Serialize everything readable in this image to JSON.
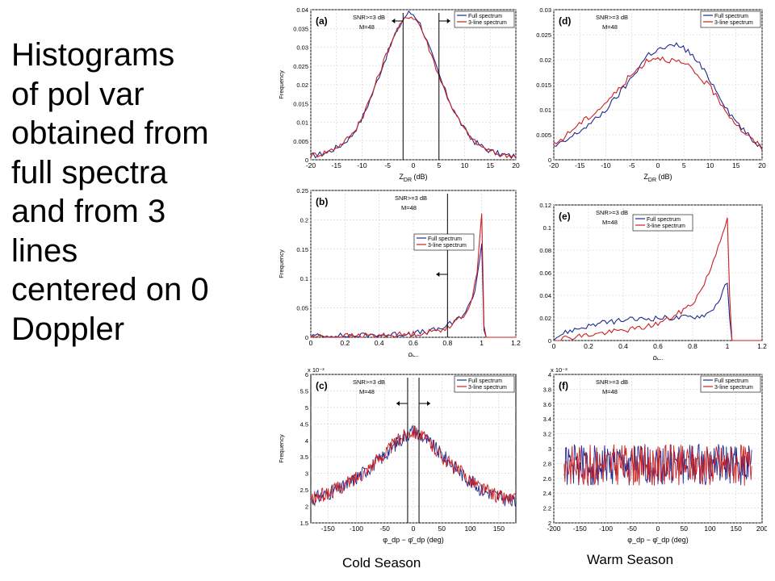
{
  "headline": "Histograms\nof pol var\nobtained from\nfull spectra\nand from 3\nlines\ncentered on 0\nDoppler",
  "seasons": {
    "cold": "Cold Season",
    "warm": "Warm Season"
  },
  "colors": {
    "full": "#1f2a8f",
    "three": "#cc1f1f",
    "grid": "#d0d0d0",
    "axis": "#000000",
    "frame_bg": "#e8e8e8"
  },
  "chart_data": [
    {
      "id": "a",
      "type": "line",
      "label": "(a)",
      "snr": "SNR>=3 dB",
      "m": "M=48",
      "xlabel": "Z_DR (dB)",
      "xlabel_main": "Z",
      "xlabel_sub": "DR",
      "xlabel_unit": " (dB)",
      "ylabel": "Frequency",
      "xlim": [
        -20,
        20
      ],
      "ylim": [
        0,
        0.04
      ],
      "xticks": [
        "-20",
        "-15",
        "-10",
        "-5",
        "0",
        "5",
        "10",
        "15",
        "20"
      ],
      "yticks": [
        "0",
        "0.005",
        "0.01",
        "0.015",
        "0.02",
        "0.025",
        "0.03",
        "0.035",
        "0.04"
      ],
      "x": [
        -20,
        -18,
        -16,
        -14,
        -12,
        -10,
        -8,
        -6,
        -4,
        -2,
        -1,
        0,
        1,
        2,
        4,
        6,
        8,
        10,
        12,
        14,
        16,
        18,
        20
      ],
      "series": [
        {
          "name": "Full spectrum",
          "values": [
            0.001,
            0.0015,
            0.0025,
            0.004,
            0.0065,
            0.011,
            0.0175,
            0.025,
            0.032,
            0.0375,
            0.0392,
            0.0388,
            0.0372,
            0.034,
            0.0265,
            0.019,
            0.0128,
            0.008,
            0.0048,
            0.003,
            0.0018,
            0.0012,
            0.001
          ]
        },
        {
          "name": "3-line spectrum",
          "values": [
            0.0012,
            0.0016,
            0.0026,
            0.0042,
            0.0067,
            0.0112,
            0.0178,
            0.0255,
            0.0325,
            0.037,
            0.0384,
            0.038,
            0.0366,
            0.0336,
            0.0262,
            0.0188,
            0.0127,
            0.0079,
            0.0047,
            0.0029,
            0.0017,
            0.0011,
            0.0012
          ]
        }
      ],
      "markers": [
        {
          "x": -2,
          "arrow": "left"
        },
        {
          "x": 5,
          "arrow": "right"
        }
      ]
    },
    {
      "id": "b",
      "type": "line",
      "label": "(b)",
      "snr": "SNR>=3 dB",
      "m": "M=48",
      "xlabel": "ρ_hv",
      "xlabel_main": "ρ",
      "xlabel_sub": "hv",
      "xlabel_unit": "",
      "ylabel": "Frequency",
      "xlim": [
        0,
        1.2
      ],
      "ylim": [
        0,
        0.25
      ],
      "xticks": [
        "0",
        "0.2",
        "0.4",
        "0.6",
        "0.8",
        "1",
        "1.2"
      ],
      "yticks": [
        "0",
        "0.05",
        "0.1",
        "0.15",
        "0.2",
        "0.25"
      ],
      "x": [
        0,
        0.1,
        0.2,
        0.3,
        0.4,
        0.5,
        0.6,
        0.7,
        0.75,
        0.8,
        0.85,
        0.9,
        0.93,
        0.95,
        0.97,
        0.98,
        0.99,
        1.0,
        1.01,
        1.02,
        1.1,
        1.2
      ],
      "series": [
        {
          "name": "Full spectrum",
          "values": [
            0.002,
            0.002,
            0.0025,
            0.003,
            0.004,
            0.005,
            0.007,
            0.01,
            0.014,
            0.02,
            0.028,
            0.042,
            0.055,
            0.07,
            0.095,
            0.115,
            0.14,
            0.16,
            0.02,
            0,
            0,
            0
          ]
        },
        {
          "name": "3-line spectrum",
          "values": [
            0.001,
            0.0015,
            0.002,
            0.0025,
            0.003,
            0.004,
            0.006,
            0.009,
            0.012,
            0.018,
            0.026,
            0.04,
            0.055,
            0.072,
            0.105,
            0.135,
            0.175,
            0.215,
            0.03,
            0,
            0,
            0
          ]
        }
      ],
      "markers": [
        {
          "x": 0.8,
          "arrow": "left"
        }
      ]
    },
    {
      "id": "c",
      "type": "line",
      "label": "(c)",
      "snr": "SNR>=3 dB",
      "m": "M=48",
      "xlabel": "φ_dp − φ̄_dp (deg)",
      "ylabel": "Frequency",
      "exponent": "x 10⁻³",
      "xlim": [
        -180,
        180
      ],
      "ylim": [
        1.5,
        6
      ],
      "xticks": [
        "-150",
        "-100",
        "-50",
        "0",
        "50",
        "100",
        "150"
      ],
      "xtick_values": [
        -150,
        -100,
        -50,
        0,
        50,
        100,
        150
      ],
      "yticks": [
        "1.5",
        "2",
        "2.5",
        "3",
        "3.5",
        "4",
        "4.5",
        "5",
        "5.5",
        "6"
      ],
      "x": [
        -180,
        -150,
        -120,
        -90,
        -60,
        -30,
        -10,
        0,
        10,
        30,
        60,
        90,
        120,
        150,
        180
      ],
      "series": [
        {
          "name": "Full spectrum",
          "values": [
            2.2,
            2.4,
            2.6,
            3.0,
            3.4,
            3.9,
            4.2,
            4.3,
            4.2,
            3.9,
            3.4,
            2.9,
            2.5,
            2.3,
            2.1
          ]
        },
        {
          "name": "3-line spectrum",
          "values": [
            2.2,
            2.4,
            2.65,
            3.0,
            3.45,
            3.95,
            4.25,
            4.3,
            4.2,
            3.9,
            3.35,
            2.95,
            2.55,
            2.3,
            2.2
          ]
        }
      ],
      "markers": [
        {
          "x": -10,
          "arrow": "left"
        },
        {
          "x": 10,
          "arrow": "right"
        }
      ]
    },
    {
      "id": "d",
      "type": "line",
      "label": "(d)",
      "snr": "SNR>=3 dB",
      "m": "M=48",
      "xlabel": "Z_DR (dB)",
      "xlabel_main": "Z",
      "xlabel_sub": "DR",
      "xlabel_unit": " (dB)",
      "ylabel": "",
      "xlim": [
        -20,
        20
      ],
      "ylim": [
        0,
        0.03
      ],
      "xticks": [
        "-20",
        "-15",
        "-10",
        "-5",
        "0",
        "5",
        "10",
        "15",
        "20"
      ],
      "yticks": [
        "0",
        "0.005",
        "0.01",
        "0.015",
        "0.02",
        "0.025",
        "0.03"
      ],
      "x": [
        -20,
        -18,
        -16,
        -14,
        -12,
        -10,
        -8,
        -6,
        -4,
        -2,
        0,
        2,
        4,
        6,
        8,
        10,
        12,
        14,
        16,
        18,
        20
      ],
      "series": [
        {
          "name": "Full spectrum",
          "values": [
            0.0025,
            0.0035,
            0.005,
            0.0065,
            0.008,
            0.01,
            0.0125,
            0.015,
            0.018,
            0.021,
            0.022,
            0.0225,
            0.023,
            0.0215,
            0.019,
            0.016,
            0.0125,
            0.009,
            0.0065,
            0.004,
            0.0025
          ]
        },
        {
          "name": "3-line spectrum",
          "values": [
            0.003,
            0.0045,
            0.0065,
            0.008,
            0.0095,
            0.0115,
            0.0135,
            0.016,
            0.018,
            0.02,
            0.0205,
            0.02,
            0.0195,
            0.0185,
            0.0165,
            0.0145,
            0.0115,
            0.0085,
            0.006,
            0.004,
            0.0025
          ]
        }
      ]
    },
    {
      "id": "e",
      "type": "line",
      "label": "(e)",
      "snr": "SNR>=3 dB",
      "m": "M=48",
      "xlabel": "ρ_hv",
      "xlabel_main": "ρ",
      "xlabel_sub": "hv",
      "xlabel_unit": "",
      "ylabel": "",
      "xlim": [
        0,
        1.2
      ],
      "ylim": [
        0,
        0.12
      ],
      "xticks": [
        "0",
        "0.2",
        "0.4",
        "0.6",
        "0.8",
        "1",
        "1.2"
      ],
      "yticks": [
        "0",
        "0.02",
        "0.04",
        "0.06",
        "0.08",
        "0.1",
        "0.12"
      ],
      "x": [
        0,
        0.05,
        0.1,
        0.2,
        0.3,
        0.4,
        0.5,
        0.6,
        0.7,
        0.8,
        0.85,
        0.9,
        0.95,
        0.98,
        1.0,
        1.02,
        1.1,
        1.2
      ],
      "series": [
        {
          "name": "Full spectrum",
          "values": [
            0.002,
            0.006,
            0.009,
            0.013,
            0.016,
            0.018,
            0.019,
            0.02,
            0.02,
            0.021,
            0.022,
            0.025,
            0.035,
            0.045,
            0.052,
            0,
            0,
            0
          ]
        },
        {
          "name": "3-line spectrum",
          "values": [
            0.001,
            0.002,
            0.003,
            0.005,
            0.007,
            0.009,
            0.011,
            0.015,
            0.022,
            0.033,
            0.045,
            0.062,
            0.085,
            0.1,
            0.107,
            0,
            0,
            0
          ]
        }
      ]
    },
    {
      "id": "f",
      "type": "line",
      "label": "(f)",
      "snr": "SNR>=3 dB",
      "m": "M=48",
      "xlabel": "φ_dp − φ̄_dp (deg)",
      "ylabel": "",
      "exponent": "x 10⁻³",
      "xlim": [
        -200,
        200
      ],
      "ylim": [
        2,
        4
      ],
      "xticks": [
        "-200",
        "-150",
        "-100",
        "-50",
        "0",
        "50",
        "100",
        "150",
        "200"
      ],
      "xtick_values": [
        -200,
        -150,
        -100,
        -50,
        0,
        50,
        100,
        150,
        200
      ],
      "yticks": [
        "2",
        "2.2",
        "2.4",
        "2.6",
        "2.8",
        "3",
        "3.2",
        "3.4",
        "3.6",
        "3.8",
        "4"
      ],
      "x": [
        -180,
        -120,
        -60,
        0,
        60,
        120,
        180
      ],
      "series": [
        {
          "name": "Full spectrum",
          "values": [
            2.78,
            2.78,
            2.78,
            2.78,
            2.78,
            2.78,
            2.78
          ]
        },
        {
          "name": "3-line spectrum",
          "values": [
            2.78,
            2.78,
            2.78,
            2.78,
            2.78,
            2.78,
            2.78
          ]
        }
      ]
    }
  ]
}
